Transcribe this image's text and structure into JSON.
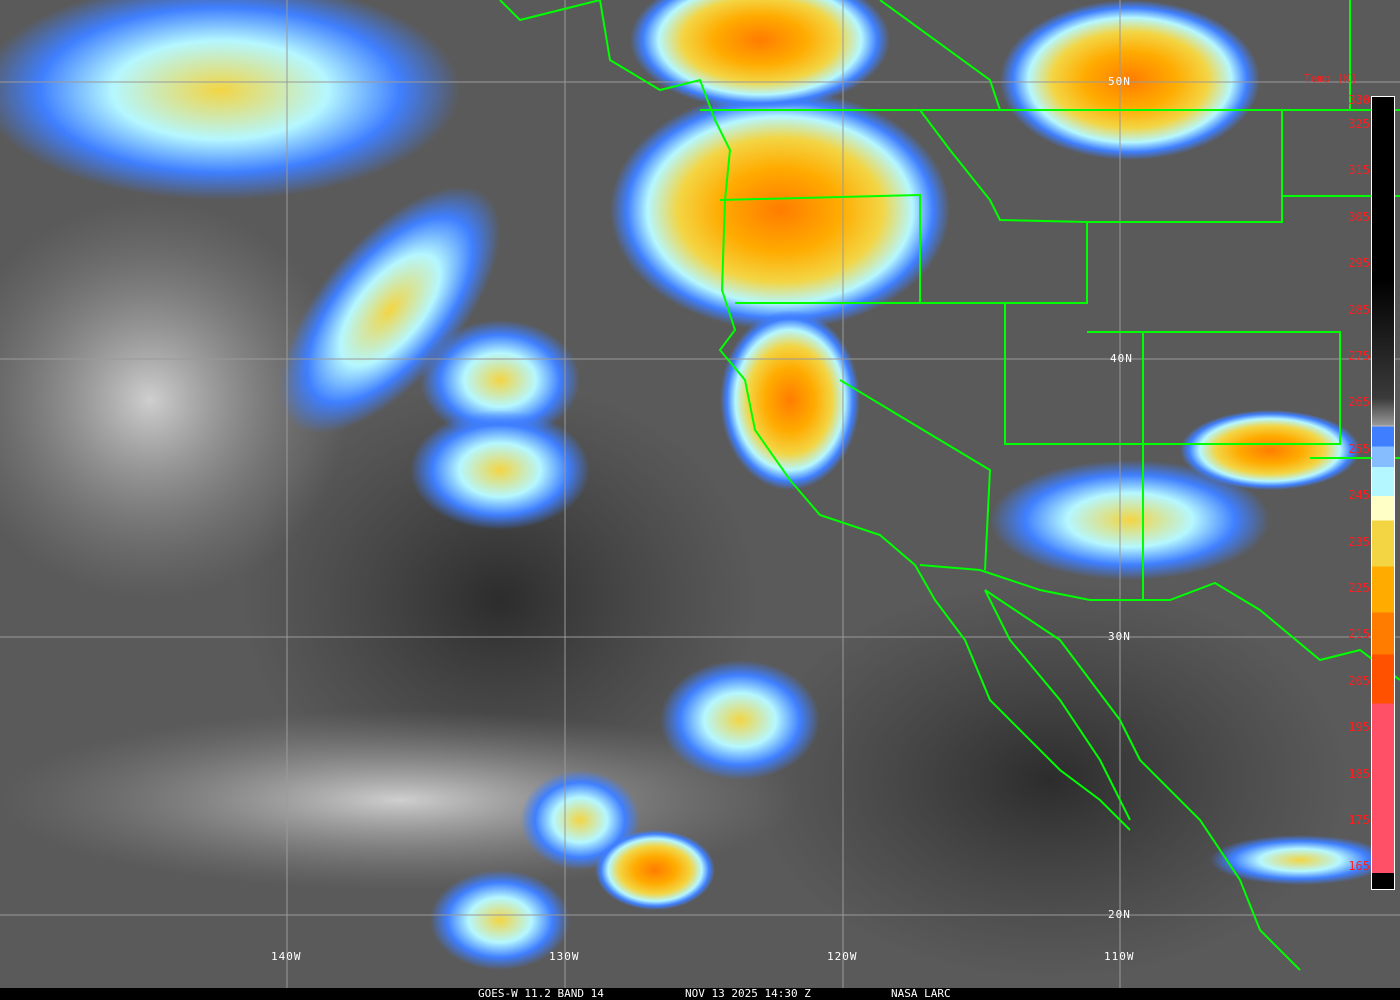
{
  "caption": {
    "satellite": "GOES-W 11.2 BAND 14",
    "datetime": "NOV 13 2025 14:30 Z",
    "source": "NASA LARC"
  },
  "legend": {
    "title": "Temp [K]",
    "ticks": [
      "330",
      "325",
      "315",
      "305",
      "295",
      "285",
      "275",
      "265",
      "255",
      "245",
      "235",
      "225",
      "215",
      "205",
      "195",
      "185",
      "175",
      "165"
    ]
  },
  "grid": {
    "latitudes": [
      "50N",
      "40N",
      "30N",
      "20N"
    ],
    "longitudes": [
      "140W",
      "130W",
      "120W",
      "110W"
    ]
  },
  "colors": {
    "coastline": "#00ff00",
    "gridline": "#9a9a9a",
    "legend_text": "#ff1e1e"
  }
}
